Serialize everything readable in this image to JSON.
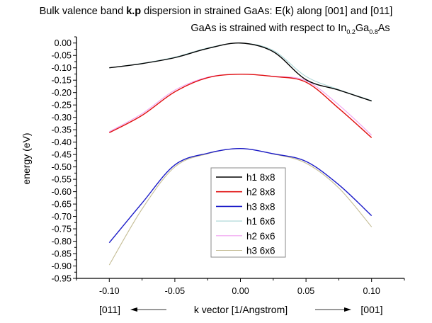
{
  "chart_data": {
    "type": "line",
    "title_pre": "Bulk valence band ",
    "title_bold": "k.p",
    "title_post": " dispersion in strained GaAs: E(k) along [001] and [011]",
    "subtitle_pre": "GaAs is strained with respect to In",
    "subtitle_sub1": "0.2",
    "subtitle_mid": "Ga",
    "subtitle_sub2": "0.8",
    "subtitle_post": "As",
    "xlabel": "k vector [1/Angstrom]",
    "ylabel": "energy (eV)",
    "x_left_direction": "[011]",
    "x_right_direction": "[001]",
    "xlim": [
      -0.125,
      0.125
    ],
    "ylim": [
      -0.95,
      0.025
    ],
    "x_ticks": [
      "-0.10",
      "-0.05",
      "0.00",
      "0.05",
      "0.10"
    ],
    "y_ticks": [
      "0.00",
      "-0.05",
      "-0.10",
      "-0.15",
      "-0.20",
      "-0.25",
      "-0.30",
      "-0.35",
      "-0.40",
      "-0.45",
      "-0.50",
      "-0.55",
      "-0.60",
      "-0.65",
      "-0.70",
      "-0.75",
      "-0.80",
      "-0.85",
      "-0.90",
      "-0.95"
    ],
    "grid": false,
    "legend_placement": "center",
    "x": [
      -0.1,
      -0.075,
      -0.05,
      -0.025,
      0.0,
      0.025,
      0.05,
      0.075,
      0.1
    ],
    "series": [
      {
        "name": "h1 8x8",
        "color": "#000000",
        "values": [
          -0.1,
          -0.083,
          -0.059,
          -0.022,
          0.0,
          -0.035,
          -0.148,
          -0.19,
          -0.234
        ]
      },
      {
        "name": "h2 8x8",
        "color": "#e01010",
        "values": [
          -0.362,
          -0.292,
          -0.197,
          -0.14,
          -0.126,
          -0.135,
          -0.158,
          -0.264,
          -0.382
        ]
      },
      {
        "name": "h3 8x8",
        "color": "#1a1ac8",
        "values": [
          -0.806,
          -0.646,
          -0.492,
          -0.445,
          -0.426,
          -0.447,
          -0.478,
          -0.572,
          -0.697
        ]
      },
      {
        "name": "h1 6x6",
        "color": "#a8d4d4",
        "values": [
          -0.1,
          -0.082,
          -0.057,
          -0.02,
          0.0,
          -0.03,
          -0.135,
          -0.188,
          -0.232
        ]
      },
      {
        "name": "h2 6x6",
        "color": "#f0a0f0",
        "values": [
          -0.358,
          -0.285,
          -0.19,
          -0.138,
          -0.126,
          -0.134,
          -0.152,
          -0.25,
          -0.372
        ]
      },
      {
        "name": "h3 6x6",
        "color": "#c4bc94",
        "values": [
          -0.896,
          -0.67,
          -0.5,
          -0.447,
          -0.426,
          -0.448,
          -0.485,
          -0.585,
          -0.742
        ]
      }
    ]
  }
}
